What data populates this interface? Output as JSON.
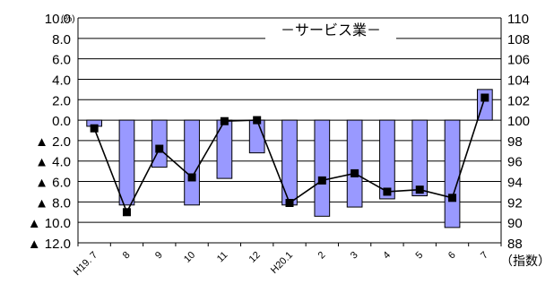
{
  "chart_data": {
    "type": "bar",
    "title": "－サービス業－",
    "left_axis_unit": "(%)",
    "right_axis_unit": "（指数）",
    "categories": [
      "H19. 7",
      "8",
      "9",
      "10",
      "11",
      "12",
      "H20.1",
      "2",
      "3",
      "4",
      "5",
      "6",
      "7"
    ],
    "left_ylim": [
      -12,
      10
    ],
    "right_ylim": [
      88,
      110
    ],
    "left_ticks": [
      {
        "v": 10,
        "label": "10.0"
      },
      {
        "v": 8,
        "label": "8.0"
      },
      {
        "v": 6,
        "label": "6.0"
      },
      {
        "v": 4,
        "label": "4.0"
      },
      {
        "v": 2,
        "label": "2.0"
      },
      {
        "v": 0,
        "label": "0.0"
      },
      {
        "v": -2,
        "label": "▲ 2.0"
      },
      {
        "v": -4,
        "label": "▲ 4.0"
      },
      {
        "v": -6,
        "label": "▲ 6.0"
      },
      {
        "v": -8,
        "label": "▲ 8.0"
      },
      {
        "v": -10,
        "label": "▲ 10.0"
      },
      {
        "v": -12,
        "label": "▲ 12.0"
      }
    ],
    "right_ticks": [
      {
        "v": 110,
        "label": "110"
      },
      {
        "v": 108,
        "label": "108"
      },
      {
        "v": 106,
        "label": "106"
      },
      {
        "v": 104,
        "label": "104"
      },
      {
        "v": 102,
        "label": "102"
      },
      {
        "v": 100,
        "label": "100"
      },
      {
        "v": 98,
        "label": "98"
      },
      {
        "v": 96,
        "label": "96"
      },
      {
        "v": 94,
        "label": "94"
      },
      {
        "v": 92,
        "label": "92"
      },
      {
        "v": 90,
        "label": "90"
      },
      {
        "v": 88,
        "label": "88"
      }
    ],
    "bars": [
      -0.6,
      -8.3,
      -4.6,
      -8.3,
      -5.7,
      -3.2,
      -8.3,
      -9.4,
      -8.5,
      -7.7,
      -7.4,
      -10.5,
      3.0
    ],
    "index_line": [
      99.2,
      91.0,
      97.2,
      94.4,
      99.9,
      100.0,
      91.9,
      94.1,
      94.8,
      93.0,
      93.2,
      92.4,
      102.2
    ],
    "grid": true,
    "colors": {
      "bar_fill": "#9999ff",
      "bar_stroke": "#000000",
      "line": "#000000",
      "marker": "#000000",
      "grid": "#000000",
      "text": "#000000"
    }
  }
}
